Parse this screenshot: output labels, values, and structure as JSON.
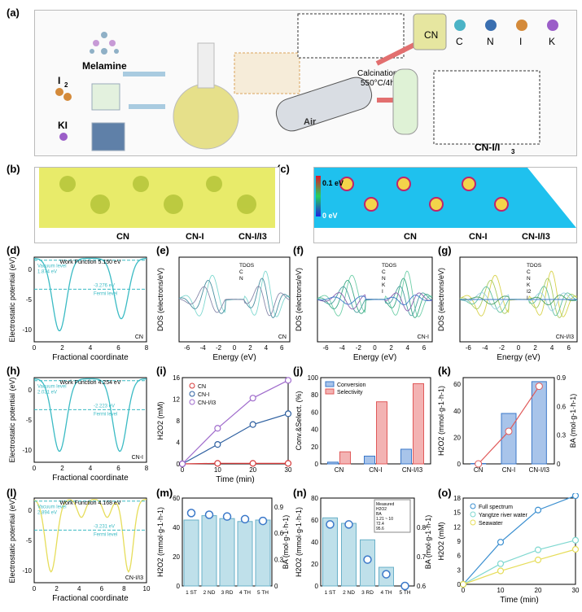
{
  "labels": {
    "a": "(a)",
    "b": "(b)",
    "c": "(c)",
    "d": "(d)",
    "e": "(e)",
    "f": "(f)",
    "g": "(g)",
    "h": "(h)",
    "i": "(i)",
    "j": "(j)",
    "k": "(k)",
    "l": "(l)",
    "m": "(m)",
    "n": "(n)",
    "o": "(o)"
  },
  "a": {
    "melamine": "Melamine",
    "i2": "I",
    "i2sub": "2",
    "ki": "KI",
    "air": "Air",
    "calcination": "Calcination",
    "temp": "550°C/4h",
    "cn": "CN",
    "legend": [
      "C",
      "N",
      "I",
      "K"
    ],
    "cni": "CN-I/I",
    "cnisub": "3"
  },
  "b": {
    "labels": [
      "CN",
      "CN-I",
      "CN-I/I3"
    ]
  },
  "c": {
    "top": "0.1 eV",
    "bottom": "0 eV",
    "labels": [
      "CN",
      "CN-I",
      "CN-I/I3"
    ]
  },
  "common": {
    "ep": "Electrostatic potential (eV)",
    "fc": "Fractional coordinate",
    "dos": "DOS (electrons/eV)",
    "energy": "Energy (eV)",
    "time": "Time (min)",
    "h2o2mm": "H2O2 (mM)",
    "conv": "Conv.&Select. (%)",
    "h2o2rate": "H2O2 (mmol·g-1·h-1)",
    "ba": "BA (mol·g-1·h-1)"
  },
  "chart_data": [
    {
      "panel": "d",
      "type": "line",
      "title": "Work Function 5.150 eV",
      "annotations": [
        "Vacuum level",
        "1.874 eV",
        "-3.276 eV",
        "Fermi level"
      ],
      "legend": [
        "CN"
      ],
      "xlim": [
        0,
        8
      ],
      "ylim": [
        -12,
        2
      ],
      "yticks": [
        -10,
        -5,
        0
      ],
      "xticks": [
        0,
        2,
        4,
        6,
        8
      ]
    },
    {
      "panel": "e",
      "type": "line",
      "series": [
        {
          "name": "TDOS"
        },
        {
          "name": "C"
        },
        {
          "name": "N"
        }
      ],
      "xlim": [
        -6,
        6
      ],
      "legend": [
        "CN"
      ]
    },
    {
      "panel": "f",
      "type": "line",
      "series": [
        {
          "name": "TDOS"
        },
        {
          "name": "C"
        },
        {
          "name": "N"
        },
        {
          "name": "K"
        },
        {
          "name": "I"
        }
      ],
      "xlim": [
        -6,
        6
      ],
      "yticks": [
        -10,
        0,
        10
      ],
      "legend": [
        "CN-I"
      ]
    },
    {
      "panel": "g",
      "type": "line",
      "series": [
        {
          "name": "TDOS"
        },
        {
          "name": "C"
        },
        {
          "name": "N"
        },
        {
          "name": "K"
        },
        {
          "name": "I2"
        },
        {
          "name": "I"
        }
      ],
      "xlim": [
        -6,
        6
      ],
      "legend": [
        "CN-I/I3"
      ]
    },
    {
      "panel": "h",
      "type": "line",
      "title": "Work Function 4.254 eV",
      "annotations": [
        "Vacuum level",
        "2.031 eV",
        "-2.223 eV",
        "Fermi level"
      ],
      "legend": [
        "CN-I"
      ],
      "xlim": [
        0,
        8
      ]
    },
    {
      "panel": "i",
      "type": "line",
      "x": [
        0,
        10,
        20,
        30
      ],
      "series": [
        {
          "name": "CN",
          "values": [
            0,
            0.1,
            0.1,
            0.1
          ]
        },
        {
          "name": "CN-I",
          "values": [
            0,
            3.6,
            7.3,
            9.3
          ]
        },
        {
          "name": "CN-I/I3",
          "values": [
            0,
            6.6,
            12.2,
            15.5
          ]
        }
      ],
      "ylim": [
        0,
        16
      ],
      "yticks": [
        0,
        4,
        8,
        12,
        16
      ],
      "xticks": [
        0,
        10,
        20,
        30
      ]
    },
    {
      "panel": "j",
      "type": "bar",
      "categories": [
        "CN",
        "CN-I",
        "CN-I/I3"
      ],
      "series": [
        {
          "name": "Conversion",
          "values": [
            2,
            9,
            17
          ]
        },
        {
          "name": "Selectivity",
          "values": [
            14,
            72,
            93
          ]
        }
      ],
      "ylim": [
        0,
        100
      ],
      "yticks": [
        0,
        20,
        40,
        60,
        80,
        100
      ]
    },
    {
      "panel": "k",
      "type": "bar",
      "categories": [
        "CN",
        "CN-I",
        "CN-I/I3"
      ],
      "series": [
        {
          "name": "H2O2",
          "values": [
            0.3,
            38,
            62
          ]
        },
        {
          "name": "BA",
          "values": [
            0,
            0.34,
            0.81
          ]
        }
      ],
      "ylim": [
        0,
        65
      ],
      "y2lim": [
        0,
        0.9
      ],
      "yticks": [
        0,
        20,
        40,
        60
      ],
      "y2ticks": [
        0,
        0.3,
        0.6,
        0.9
      ]
    },
    {
      "panel": "l",
      "type": "line",
      "title": "Work Function 4.168 eV",
      "annotations": [
        "Vacuum level",
        "2.894 eV",
        "-3.231 eV",
        "Fermi level"
      ],
      "legend": [
        "CN-I/I3"
      ],
      "xlim": [
        0,
        10
      ]
    },
    {
      "panel": "m",
      "type": "bar",
      "categories": [
        "1 ST",
        "2 ND",
        "3 RD",
        "4 TH",
        "5 TH"
      ],
      "series": [
        {
          "name": "H2O2",
          "values": [
            45,
            48,
            46,
            44,
            45
          ]
        },
        {
          "name": "BA",
          "values": [
            0.83,
            0.81,
            0.79,
            0.76,
            0.74
          ]
        }
      ],
      "ylim": [
        0,
        60
      ],
      "y2lim": [
        0,
        1
      ]
    },
    {
      "panel": "n",
      "type": "bar",
      "categories": [
        "1 ST",
        "2 ND",
        "3 RD",
        "4 TH",
        "5 TH"
      ],
      "series": [
        {
          "name": "H2O2",
          "values": [
            62,
            57,
            42,
            17,
            0
          ]
        },
        {
          "name": "BA",
          "values": [
            0.81,
            0.81,
            0.69,
            0.64,
            0.6
          ]
        }
      ],
      "ylim": [
        0,
        80
      ],
      "y2lim": [
        0.6,
        0.9
      ],
      "inset": [
        "Measured",
        "H2O2",
        "BA",
        "1.21 ~ 10",
        "72.4",
        "95.6"
      ]
    },
    {
      "panel": "o",
      "type": "line",
      "x": [
        0,
        10,
        20,
        30
      ],
      "series": [
        {
          "name": "Full spectrum",
          "values": [
            0,
            8.8,
            15.5,
            18.5
          ]
        },
        {
          "name": "Yangtze river water",
          "values": [
            0,
            4.3,
            7.2,
            9.2
          ]
        },
        {
          "name": "Seawater",
          "values": [
            0,
            2.8,
            5.1,
            7.3
          ]
        }
      ],
      "ylim": [
        0,
        18
      ],
      "yticks": [
        0,
        3,
        6,
        9,
        12,
        15,
        18
      ],
      "xticks": [
        0,
        10,
        20,
        30
      ]
    }
  ],
  "colors": {
    "cn": "#d63a3a",
    "cni": "#2d5fa0",
    "cnii3": "#a06ccc",
    "blue": "#3b78c9",
    "red": "#e05a5a",
    "cyan": "#3bbbc4",
    "yellow": "#d8d24a",
    "o1": "#3b8fd0",
    "o2": "#7fd8d0",
    "o3": "#e6dd5a"
  }
}
